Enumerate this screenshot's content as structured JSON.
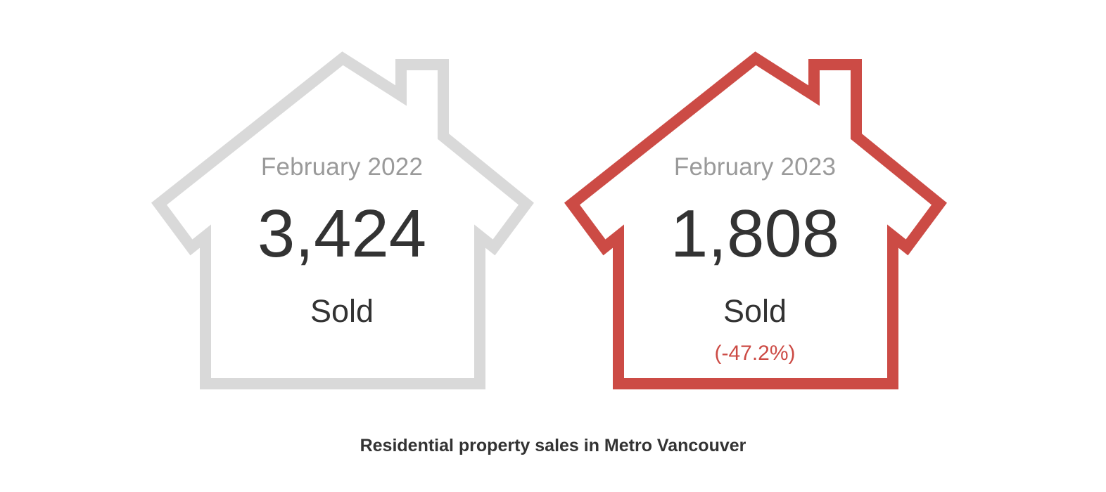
{
  "cards": [
    {
      "period": "February 2022",
      "count": "3,424",
      "label": "Sold",
      "change": "",
      "outline_color": "#d9d9d9"
    },
    {
      "period": "February 2023",
      "count": "1,808",
      "label": "Sold",
      "change": "(-47.2%)",
      "outline_color": "#cc4b45",
      "change_color": "#cc4b45"
    }
  ],
  "caption": "Residential property sales in Metro Vancouver",
  "icons": [
    "house-outline-icon"
  ]
}
